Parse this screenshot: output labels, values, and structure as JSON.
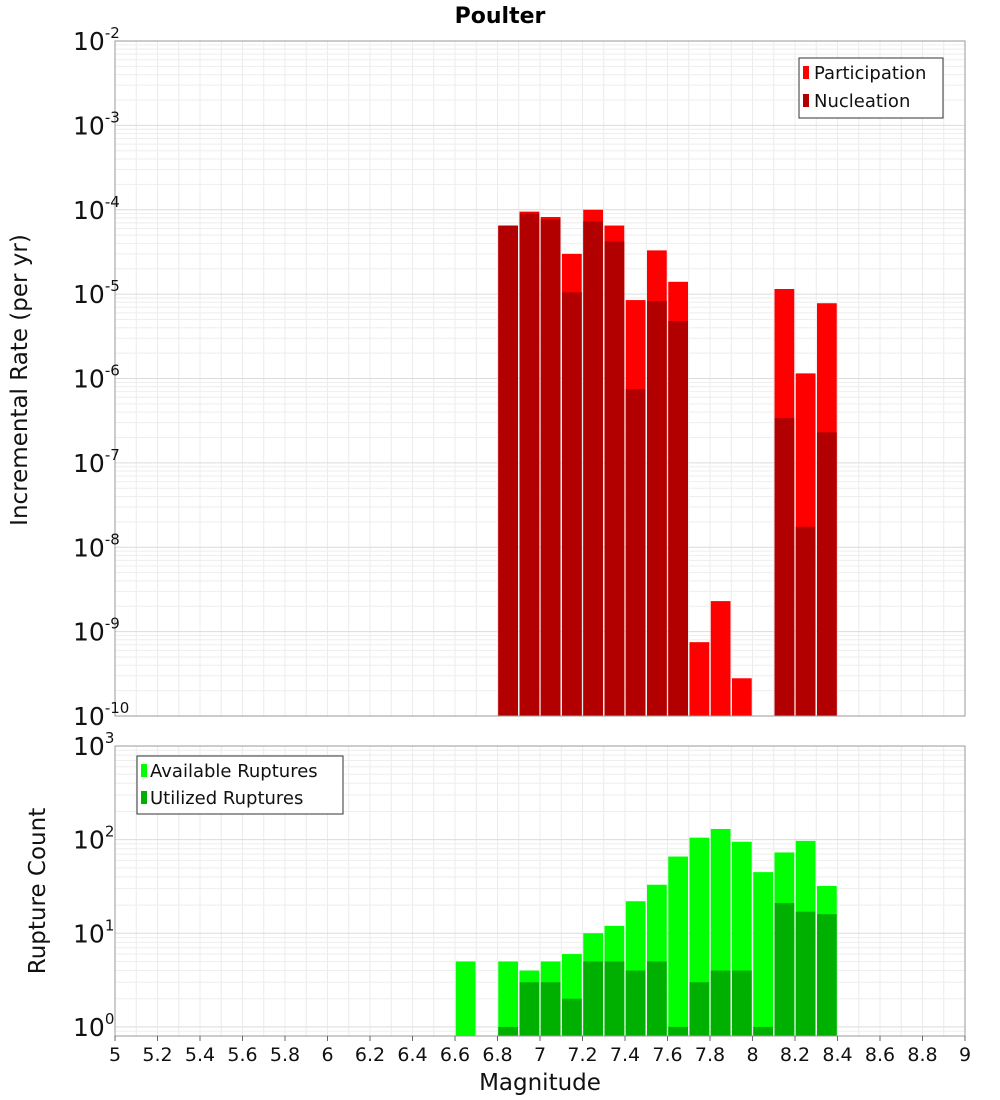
{
  "chart_data": [
    {
      "type": "bar",
      "title": "Poulter",
      "xlabel": "",
      "ylabel": "Incremental Rate (per yr)",
      "xlim": [
        5,
        9
      ],
      "ylim": [
        1e-10,
        0.01
      ],
      "y_scale": "log",
      "grid": true,
      "legend_position": "top-right",
      "y_ticks": [
        {
          "base": "10",
          "exp": "-10"
        },
        {
          "base": "10",
          "exp": "-9"
        },
        {
          "base": "10",
          "exp": "-8"
        },
        {
          "base": "10",
          "exp": "-7"
        },
        {
          "base": "10",
          "exp": "-6"
        },
        {
          "base": "10",
          "exp": "-5"
        },
        {
          "base": "10",
          "exp": "-4"
        },
        {
          "base": "10",
          "exp": "-3"
        },
        {
          "base": "10",
          "exp": "-2"
        }
      ],
      "x": [
        6.85,
        6.95,
        7.05,
        7.15,
        7.25,
        7.35,
        7.45,
        7.55,
        7.65,
        7.75,
        7.85,
        7.95,
        8.05,
        8.15,
        8.25,
        8.35
      ],
      "series": [
        {
          "name": "Participation",
          "color": "#ff0000",
          "values": [
            6.5e-05,
            9.5e-05,
            8.2e-05,
            3e-05,
            0.0001,
            6.5e-05,
            8.5e-06,
            3.3e-05,
            1.4e-05,
            7.5e-10,
            2.3e-09,
            2.8e-10,
            null,
            1.15e-05,
            1.15e-06,
            7.8e-06
          ]
        },
        {
          "name": "Nucleation",
          "color": "#b20000",
          "values": [
            6.5e-05,
            9e-05,
            7.7e-05,
            1.05e-05,
            7.3e-05,
            4.2e-05,
            7.5e-07,
            8.3e-06,
            4.8e-06,
            null,
            null,
            null,
            null,
            3.4e-07,
            1.75e-08,
            2.3e-07
          ]
        }
      ]
    },
    {
      "type": "bar",
      "title": "",
      "xlabel": "Magnitude",
      "ylabel": "Rupture Count",
      "xlim": [
        5,
        9
      ],
      "ylim": [
        0.8,
        1000
      ],
      "y_scale": "log",
      "grid": true,
      "legend_position": "top-left",
      "x_tick_labels": [
        "5",
        "5.2",
        "5.4",
        "5.6",
        "5.8",
        "6",
        "6.2",
        "6.4",
        "6.6",
        "6.8",
        "7",
        "7.2",
        "7.4",
        "7.6",
        "7.8",
        "8",
        "8.2",
        "8.4",
        "8.6",
        "8.8",
        "9"
      ],
      "y_ticks": [
        {
          "base": "10",
          "exp": "0"
        },
        {
          "base": "10",
          "exp": "1"
        },
        {
          "base": "10",
          "exp": "2"
        },
        {
          "base": "10",
          "exp": "3"
        }
      ],
      "x": [
        6.65,
        6.85,
        6.95,
        7.05,
        7.15,
        7.25,
        7.35,
        7.45,
        7.55,
        7.65,
        7.75,
        7.85,
        7.95,
        8.05,
        8.15,
        8.25,
        8.35
      ],
      "series": [
        {
          "name": "Available Ruptures",
          "color": "#00ff00",
          "values": [
            5,
            5,
            4,
            5,
            6,
            10,
            12,
            22,
            33,
            66,
            105,
            130,
            95,
            45,
            73,
            97,
            32
          ]
        },
        {
          "name": "Utilized Ruptures",
          "color": "#00b000",
          "values": [
            null,
            1,
            3,
            3,
            2,
            5,
            5,
            4,
            5,
            1,
            3,
            4,
            4,
            1,
            21,
            17,
            16
          ]
        }
      ]
    }
  ]
}
